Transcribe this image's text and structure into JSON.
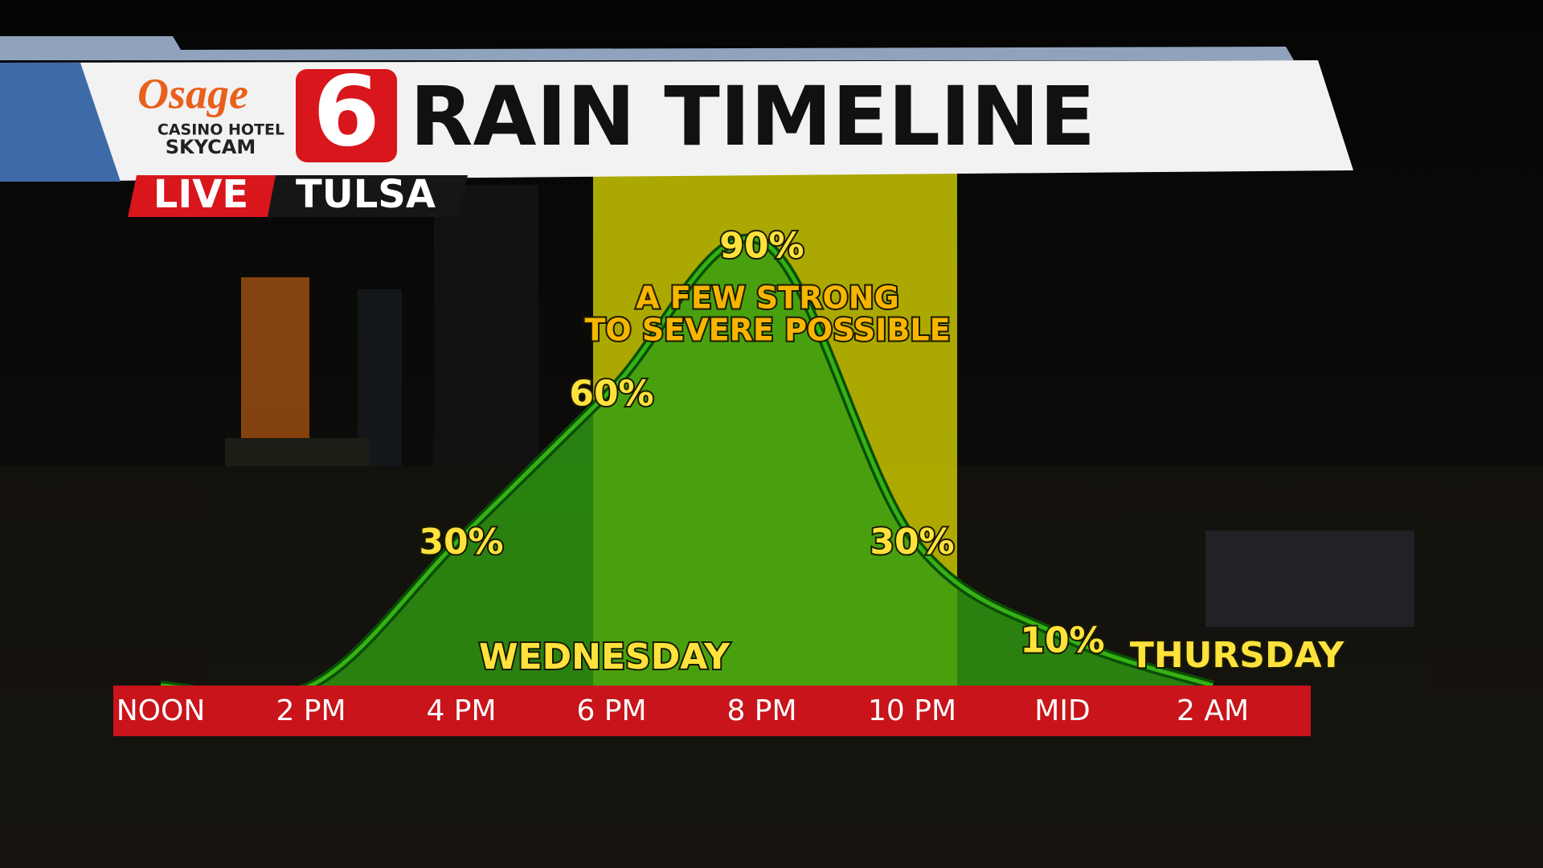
{
  "chart_data": {
    "type": "area",
    "title": "RAIN TIMELINE",
    "categories": [
      "NOON",
      "2 PM",
      "4 PM",
      "6 PM",
      "8 PM",
      "10 PM",
      "MID",
      "2 AM"
    ],
    "values": [
      0,
      0,
      30,
      60,
      90,
      30,
      10,
      0
    ],
    "value_labels": [
      null,
      null,
      "30%",
      "60%",
      "90%",
      "30%",
      "10%",
      null
    ],
    "annotation": [
      "A FEW STRONG",
      "TO SEVERE POSSIBLE"
    ],
    "day_labels": [
      "WEDNESDAY",
      "THURSDAY"
    ],
    "color": "#2f9e12"
  },
  "branding": {
    "sponsor": "Osage",
    "sponsor_sub": "CASINO HOTEL",
    "sponsor_cam": "SKYCAM",
    "channel": "6",
    "live": "LIVE",
    "location": "TULSA"
  }
}
